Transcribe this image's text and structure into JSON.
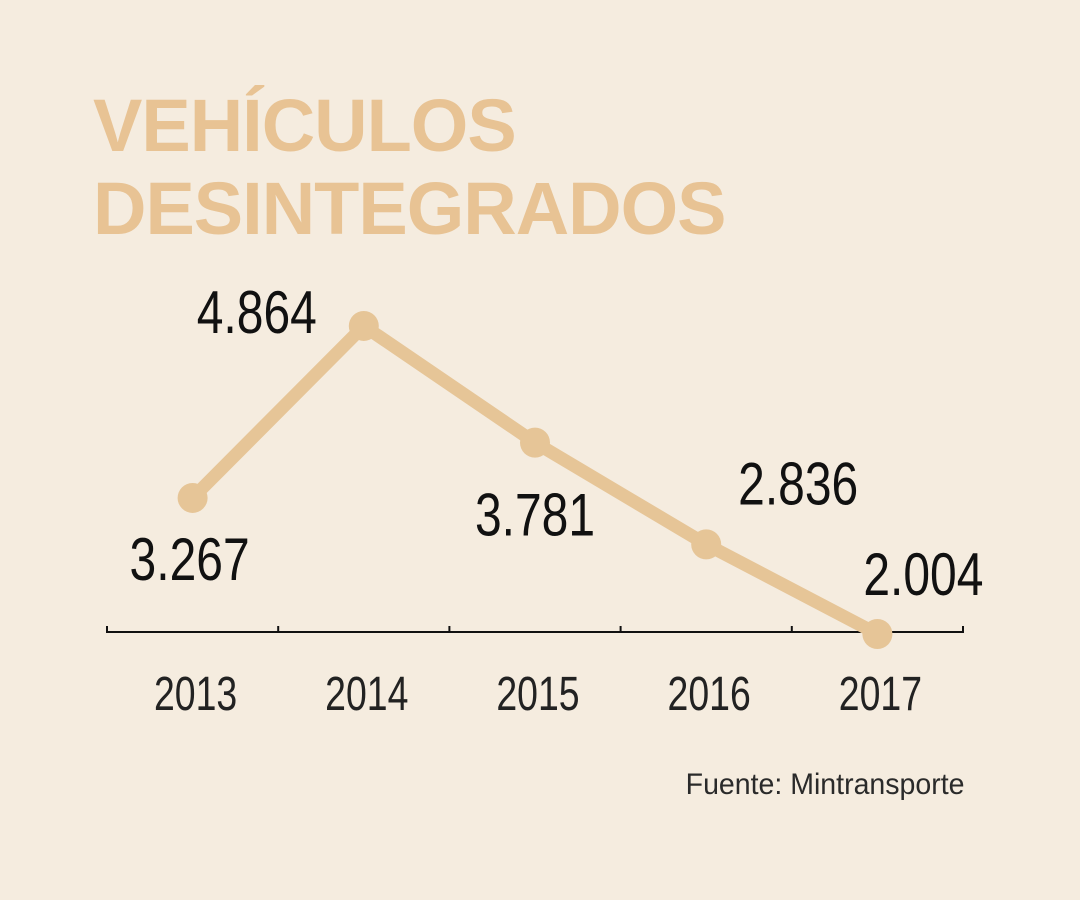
{
  "chart_data": {
    "type": "line",
    "title_lines": [
      "VEHÍCULOS",
      "DESINTEGRADOS"
    ],
    "categories": [
      "2013",
      "2014",
      "2015",
      "2016",
      "2017"
    ],
    "values": [
      3267,
      4864,
      3781,
      2836,
      2004
    ],
    "data_labels": [
      "3.267",
      "4.864",
      "3.781",
      "2.836",
      "2.004"
    ],
    "ylim": [
      2000,
      5000
    ],
    "grid": false,
    "legend": "none",
    "source": "Fuente: Mintransporte",
    "colors": {
      "background": "#F5ECDF",
      "line": "#E6C597",
      "title": "#E8C394",
      "text": "#111111"
    }
  }
}
